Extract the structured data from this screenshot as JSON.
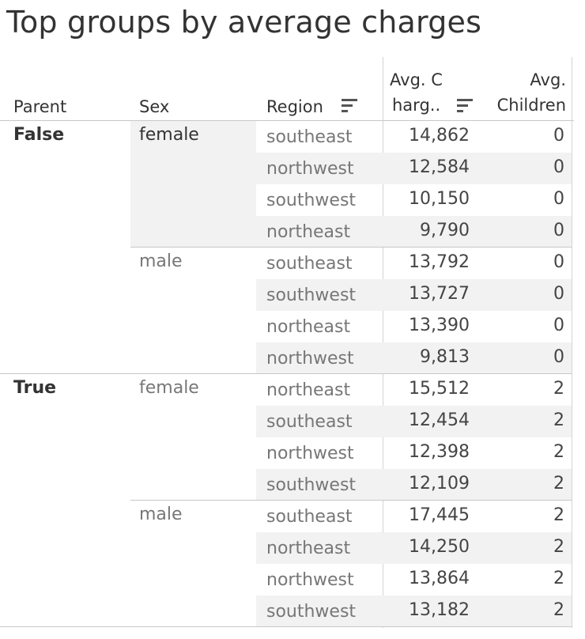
{
  "title": "Top groups by average charges",
  "headers": {
    "parent": "Parent",
    "sex": "Sex",
    "region": "Region",
    "charges_line1": "Avg. C",
    "charges_line2": "harg..",
    "children_line1": "Avg.",
    "children_line2": "Children"
  },
  "sort_icons": [
    "sort-descending-icon",
    "sort-descending-icon"
  ],
  "chart_data": {
    "type": "table",
    "columns": [
      "Parent",
      "Sex",
      "Region",
      "Avg. Charges",
      "Avg. Children"
    ],
    "groups": [
      {
        "parent": "False",
        "sexes": [
          {
            "sex": "female",
            "rows": [
              {
                "region": "southeast",
                "charges": "14,862",
                "children": "0"
              },
              {
                "region": "northwest",
                "charges": "12,584",
                "children": "0"
              },
              {
                "region": "southwest",
                "charges": "10,150",
                "children": "0"
              },
              {
                "region": "northeast",
                "charges": "9,790",
                "children": "0"
              }
            ]
          },
          {
            "sex": "male",
            "rows": [
              {
                "region": "southeast",
                "charges": "13,792",
                "children": "0"
              },
              {
                "region": "southwest",
                "charges": "13,727",
                "children": "0"
              },
              {
                "region": "northeast",
                "charges": "13,390",
                "children": "0"
              },
              {
                "region": "northwest",
                "charges": "9,813",
                "children": "0"
              }
            ]
          }
        ]
      },
      {
        "parent": "True",
        "sexes": [
          {
            "sex": "female",
            "rows": [
              {
                "region": "northeast",
                "charges": "15,512",
                "children": "2"
              },
              {
                "region": "southeast",
                "charges": "12,454",
                "children": "2"
              },
              {
                "region": "northwest",
                "charges": "12,398",
                "children": "2"
              },
              {
                "region": "southwest",
                "charges": "12,109",
                "children": "2"
              }
            ]
          },
          {
            "sex": "male",
            "rows": [
              {
                "region": "southeast",
                "charges": "17,445",
                "children": "2"
              },
              {
                "region": "northeast",
                "charges": "14,250",
                "children": "2"
              },
              {
                "region": "northwest",
                "charges": "13,864",
                "children": "2"
              },
              {
                "region": "southwest",
                "charges": "13,182",
                "children": "2"
              }
            ]
          }
        ]
      }
    ]
  }
}
